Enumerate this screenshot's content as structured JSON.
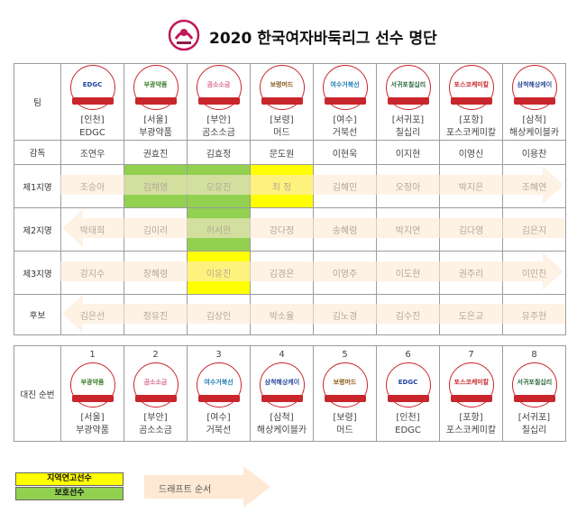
{
  "title": "2020 한국여자바둑리그 선수 명단",
  "main": {
    "team_label": "팀",
    "teams": [
      {
        "logo": "EDGC",
        "region": "[인천]",
        "name": "EDGC",
        "logo_color": "#1f3fa3"
      },
      {
        "logo": "부광약품",
        "region": "[서울]",
        "name": "부광약품",
        "logo_color": "#3a7d2a"
      },
      {
        "logo": "곰소소금",
        "region": "[부안]",
        "name": "곰소소금",
        "logo_color": "#d96a8a"
      },
      {
        "logo": "보령머드",
        "region": "[보령]",
        "name": "머드",
        "logo_color": "#8a5a1a"
      },
      {
        "logo": "여수거북선",
        "region": "[여수]",
        "name": "거북선",
        "logo_color": "#1a7ab0"
      },
      {
        "logo": "서귀포칠십리",
        "region": "[서귀포]",
        "name": "칠십리",
        "logo_color": "#2a6a3a"
      },
      {
        "logo": "포스코케미칼",
        "region": "[포항]",
        "name": "포스코케미칼",
        "logo_color": "#c9252c"
      },
      {
        "logo": "삼척해상케이블카",
        "region": "[삼척]",
        "name": "해상케이블카",
        "logo_color": "#2a4a9a"
      }
    ],
    "coach_label": "감독",
    "coaches": [
      "조연우",
      "권효진",
      "김효정",
      "문도원",
      "이현욱",
      "이지현",
      "이영신",
      "이용찬"
    ],
    "rows": [
      {
        "label": "제1지명",
        "players": [
          "조승아",
          "김채영",
          "오유진",
          "최 정",
          "김혜민",
          "오정아",
          "박지은",
          "조혜연"
        ]
      },
      {
        "label": "제2지명",
        "players": [
          "박태희",
          "김미리",
          "허서현",
          "강다정",
          "송혜령",
          "박지연",
          "김다영",
          "김은지"
        ]
      },
      {
        "label": "제3지명",
        "players": [
          "강지수",
          "장혜령",
          "이유진",
          "김경은",
          "이영주",
          "이도현",
          "권주리",
          "이민진"
        ]
      },
      {
        "label": "후보",
        "players": [
          "김은선",
          "정유진",
          "김상인",
          "박소율",
          "김노경",
          "김수진",
          "도은교",
          "유주현"
        ]
      }
    ]
  },
  "order": {
    "label": "대진 순번",
    "numbers": [
      "1",
      "2",
      "3",
      "4",
      "5",
      "6",
      "7",
      "8"
    ],
    "teams": [
      {
        "logo": "부광약품",
        "region": "[서울]",
        "name": "부광약품",
        "logo_color": "#3a7d2a"
      },
      {
        "logo": "곰소소금",
        "region": "[부안]",
        "name": "곰소소금",
        "logo_color": "#d96a8a"
      },
      {
        "logo": "여수거북선",
        "region": "[여수]",
        "name": "거북선",
        "logo_color": "#1a7ab0"
      },
      {
        "logo": "삼척해상케이블카",
        "region": "[삼척]",
        "name": "해상케이블카",
        "logo_color": "#2a4a9a"
      },
      {
        "logo": "보령머드",
        "region": "[보령]",
        "name": "머드",
        "logo_color": "#8a5a1a"
      },
      {
        "logo": "EDGC",
        "region": "[인천]",
        "name": "EDGC",
        "logo_color": "#1f3fa3"
      },
      {
        "logo": "포스코케미칼",
        "region": "[포항]",
        "name": "포스코케미칼",
        "logo_color": "#c9252c"
      },
      {
        "logo": "서귀포칠십리",
        "region": "[서귀포]",
        "name": "칠십리",
        "logo_color": "#2a6a3a"
      }
    ]
  },
  "legend": {
    "local": "지역연고선수",
    "protected": "보호선수",
    "draft": "드래프트 순서",
    "colors": {
      "local": "#ffff00",
      "protected": "#92d050",
      "arrow": "#fde9d4"
    }
  }
}
